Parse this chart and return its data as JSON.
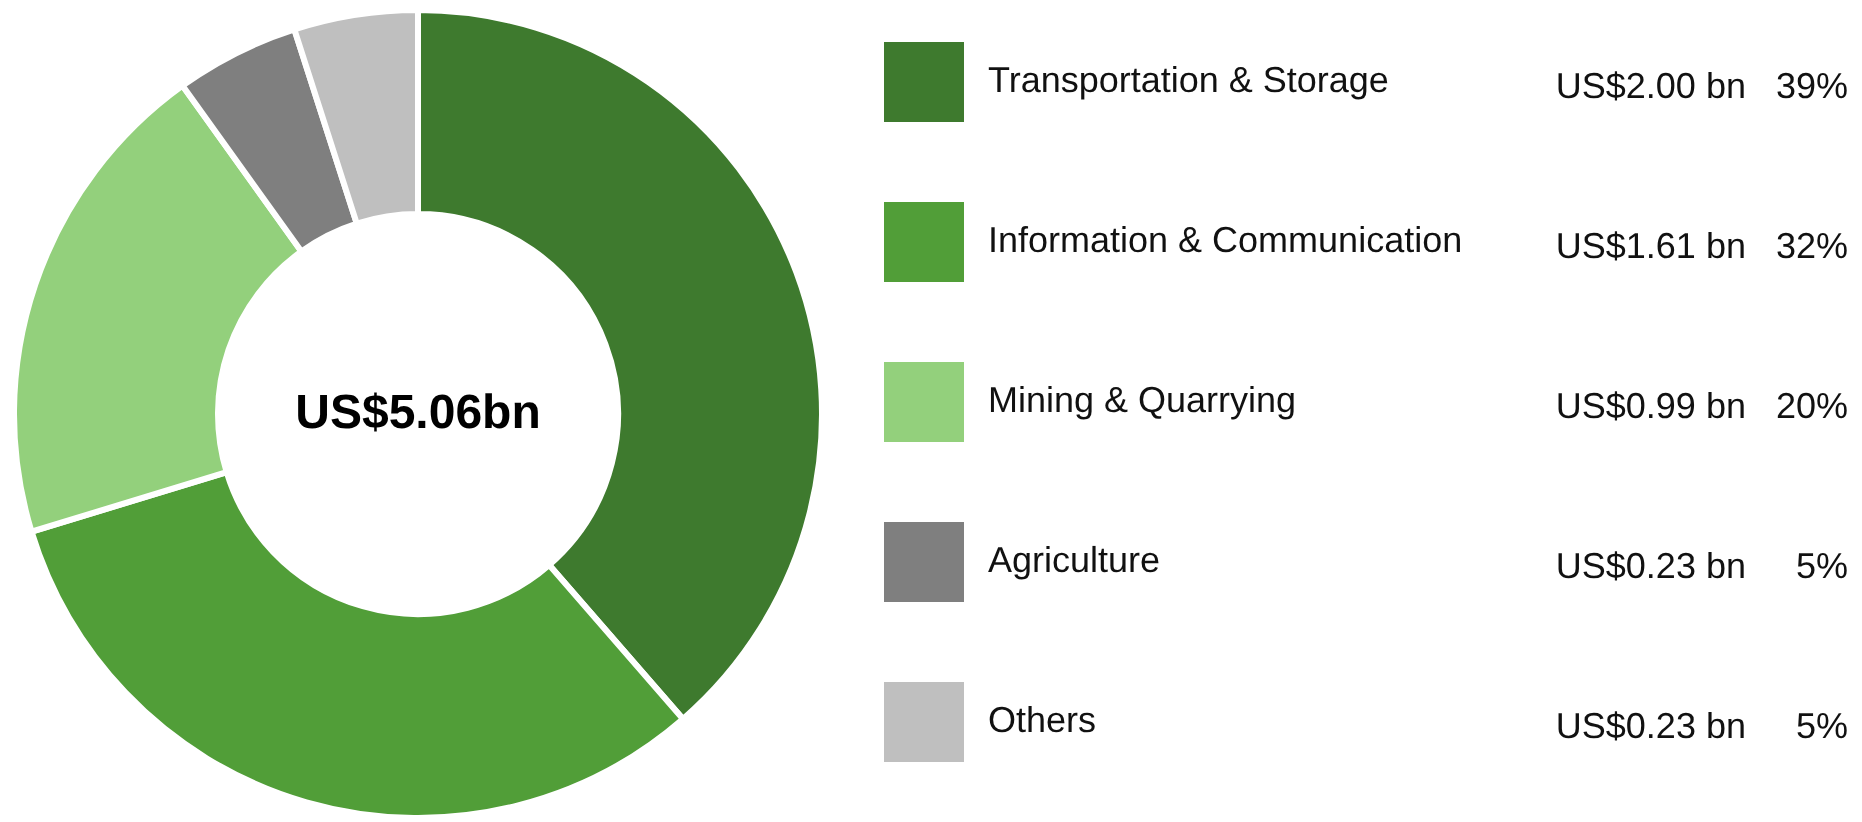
{
  "chart_data": {
    "type": "donut",
    "categories": [
      "Transportation & Storage",
      "Information & Communication",
      "Mining & Quarrying",
      "Agriculture",
      "Others"
    ],
    "values": [
      39,
      32,
      20,
      5,
      5
    ],
    "colors": [
      "#3e7a2e",
      "#519e38",
      "#93d07c",
      "#7f7f7f",
      "#bfbfbf"
    ],
    "value_labels": [
      "US$2.00 bn   39%",
      "US$1.61 bn   32%",
      "US$0.99 bn   20%",
      "US$0.23 bn     5%",
      "US$0.23 bn     5%"
    ],
    "annotations": [
      "US$5.06bn"
    ],
    "legend": "right"
  }
}
